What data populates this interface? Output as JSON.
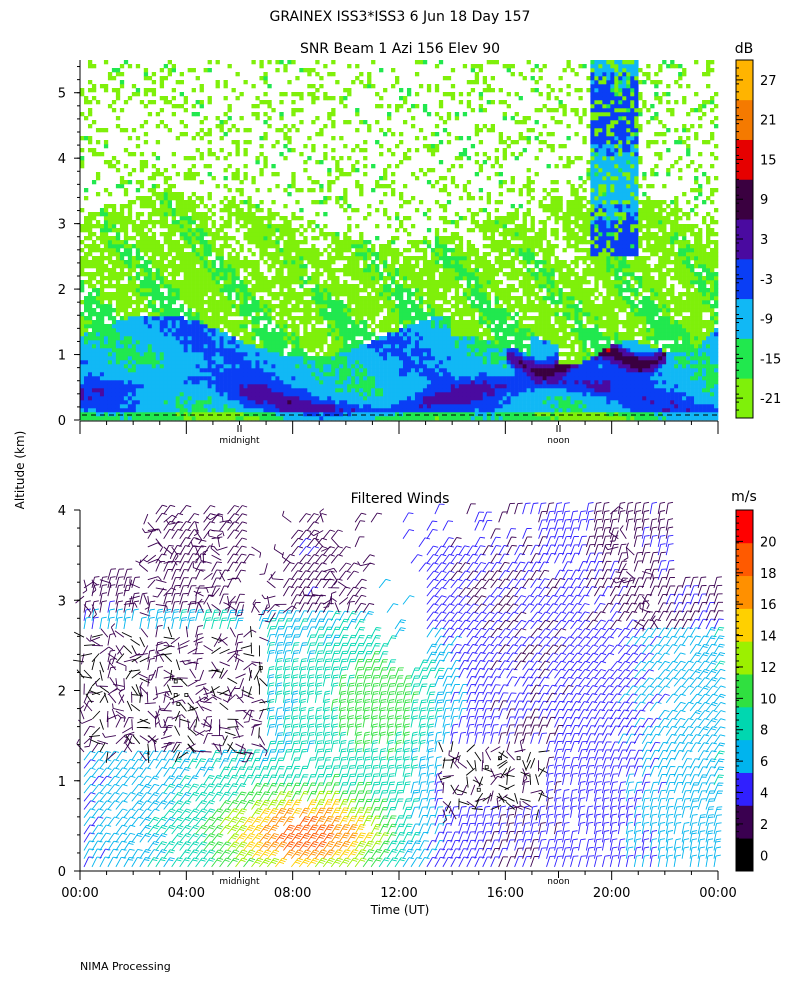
{
  "header": {
    "title": "GRAINEX ISS3*ISS3   6 Jun 18 Day 157"
  },
  "footer": {
    "processing": "NIMA Processing"
  },
  "shared": {
    "ylabel": "Altitude (km)",
    "xlabel": "Time (UT)",
    "x_ticks": [
      "00:00",
      "04:00",
      "08:00",
      "12:00",
      "16:00",
      "20:00",
      "00:00"
    ],
    "marker_labels": [
      "midnight",
      "noon"
    ]
  },
  "chart_data": [
    {
      "type": "heatmap",
      "title": "SNR Beam 1 Azi 156 Elev 90",
      "ylabel": "Altitude (km)",
      "y_ticks": [
        "0",
        "1",
        "2",
        "3",
        "4",
        "5"
      ],
      "ylim": [
        0,
        5.5
      ],
      "xlim_hours": [
        0,
        24
      ],
      "colorbar": {
        "unit": "dB",
        "tick_labels": [
          "27",
          "21",
          "15",
          "9",
          "3",
          "-3",
          "-9",
          "-15",
          "-21"
        ],
        "range": [
          -24,
          33
        ]
      },
      "features": [
        {
          "desc": "low layer strong",
          "t0": 0,
          "t1": 24,
          "z": 0.6,
          "val": -6
        },
        {
          "desc": "boundary layer top",
          "t0": 0,
          "t1": 24,
          "z": 1.4,
          "val": -16
        }
      ]
    },
    {
      "type": "scatter",
      "title": "Filtered Winds",
      "ylabel": "Altitude (km)",
      "xlabel": "Time (UT)",
      "y_ticks": [
        "0",
        "1",
        "2",
        "3",
        "4"
      ],
      "ylim": [
        0,
        4
      ],
      "xlim_hours": [
        0,
        24
      ],
      "colorbar": {
        "unit": "m/s",
        "tick_labels": [
          "20",
          "18",
          "16",
          "14",
          "12",
          "10",
          "8",
          "6",
          "4",
          "2",
          "0"
        ],
        "range": [
          0,
          22
        ]
      }
    }
  ],
  "colors": {
    "dB_scale": [
      "#7ff00a",
      "#21e84e",
      "#11b8f5",
      "#0a3ef5",
      "#4a0aa0",
      "#3a0040",
      "#e60000",
      "#f57a00",
      "#ffb400"
    ],
    "speed_scale": [
      "#000000",
      "#3a0050",
      "#3020ff",
      "#00b4ee",
      "#00d7b0",
      "#30e040",
      "#9cf000",
      "#ffd000",
      "#ff9000",
      "#ff5a00",
      "#ff0000"
    ]
  }
}
